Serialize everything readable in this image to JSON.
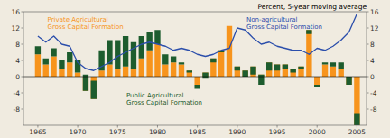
{
  "chart_data": {
    "type": "bar",
    "stacked": true,
    "title": "Percent, 5-year moving average",
    "x": [
      1965,
      1966,
      1967,
      1968,
      1969,
      1970,
      1971,
      1972,
      1973,
      1974,
      1975,
      1976,
      1977,
      1978,
      1979,
      1980,
      1981,
      1982,
      1983,
      1984,
      1985,
      1986,
      1987,
      1988,
      1989,
      1990,
      1991,
      1992,
      1993,
      1994,
      1995,
      1996,
      1997,
      1998,
      1999,
      2000,
      2001,
      2002,
      2003,
      2004,
      2005
    ],
    "series": [
      {
        "name": "Private Agricultural\nGross Capital Formation",
        "type": "bar",
        "color": "#F7941D",
        "values": [
          5.5,
          3.0,
          5.0,
          2.0,
          3.5,
          1.0,
          -3.5,
          -5.5,
          1.5,
          3.0,
          2.0,
          2.5,
          2.0,
          4.5,
          6.5,
          8.0,
          3.0,
          3.5,
          3.0,
          1.5,
          -2.0,
          1.0,
          4.5,
          6.5,
          12.5,
          2.5,
          1.5,
          2.5,
          0.5,
          3.5,
          3.0,
          3.0,
          2.0,
          2.5,
          11.5,
          -2.0,
          3.0,
          2.5,
          2.0,
          -2.0,
          -12.0
        ]
      },
      {
        "name": "Public Agricultural\nGross Capital Formation",
        "type": "bar",
        "color": "#1D5C2E",
        "values": [
          2.0,
          1.5,
          2.0,
          2.0,
          2.5,
          3.0,
          4.0,
          4.5,
          5.0,
          6.0,
          7.0,
          7.5,
          6.5,
          5.5,
          4.5,
          3.5,
          2.5,
          1.5,
          0.5,
          -0.5,
          -1.0,
          -1.5,
          -1.0,
          -0.5,
          0.0,
          -1.0,
          -1.5,
          -2.0,
          -2.5,
          -2.0,
          -1.5,
          -1.0,
          -1.0,
          -0.5,
          -1.0,
          -0.5,
          0.5,
          1.0,
          1.5,
          2.0,
          3.0
        ]
      },
      {
        "name": "Non-agricultural\nGross Capital Formation",
        "type": "line",
        "color": "#2B4EAB",
        "values": [
          10.0,
          8.5,
          10.0,
          8.0,
          7.5,
          3.5,
          2.0,
          1.5,
          2.5,
          3.5,
          5.0,
          6.0,
          7.0,
          8.0,
          8.5,
          8.0,
          7.5,
          6.5,
          7.0,
          6.5,
          5.5,
          5.0,
          5.5,
          6.5,
          7.0,
          12.0,
          11.5,
          9.5,
          8.0,
          8.5,
          7.5,
          7.0,
          6.5,
          6.5,
          5.5,
          7.0,
          6.5,
          7.5,
          9.0,
          11.0,
          15.5
        ]
      }
    ],
    "xlim": [
      1963.2,
      2006.2
    ],
    "xticks": [
      1965,
      1970,
      1975,
      1980,
      1985,
      1990,
      1995,
      2000,
      2005
    ],
    "ylim": [
      -12,
      16
    ],
    "yticks": [
      -8,
      -4,
      0,
      4,
      8,
      12,
      16
    ],
    "y2lim": [
      -12,
      16
    ],
    "y2ticks": [
      -8,
      -4,
      0,
      4,
      8,
      12,
      16
    ]
  }
}
